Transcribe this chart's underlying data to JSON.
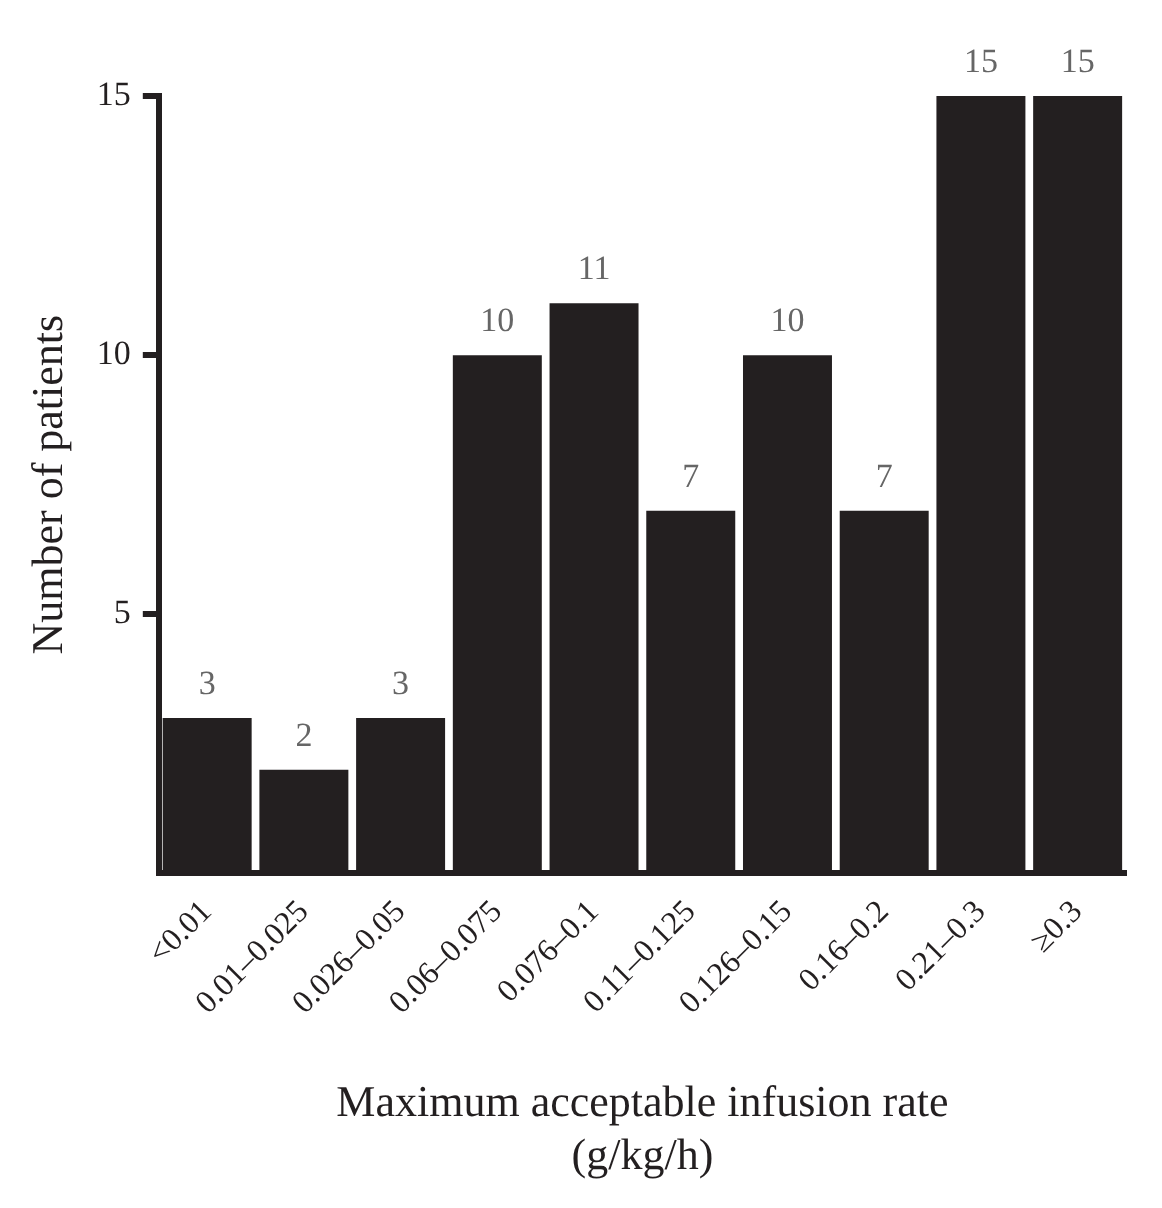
{
  "chart_data": {
    "type": "bar",
    "xlabel": "Maximum acceptable infusion rate\n(g/kg/h)",
    "ylabel": "Number of patients",
    "categories": [
      "<0.01",
      "0.01–0.025",
      "0.026–0.05",
      "0.06–0.075",
      "0.076–0.1",
      "0.11–0.125",
      "0.126–0.15",
      "0.16–0.2",
      "0.21–0.3",
      "≥0.3"
    ],
    "values": [
      3,
      2,
      3,
      10,
      11,
      7,
      10,
      7,
      15,
      15
    ],
    "color": "#231f20",
    "ylim": [
      0,
      15
    ],
    "yticks": [
      5,
      10,
      15
    ],
    "grid": false,
    "legend": false,
    "data_labels": true
  }
}
